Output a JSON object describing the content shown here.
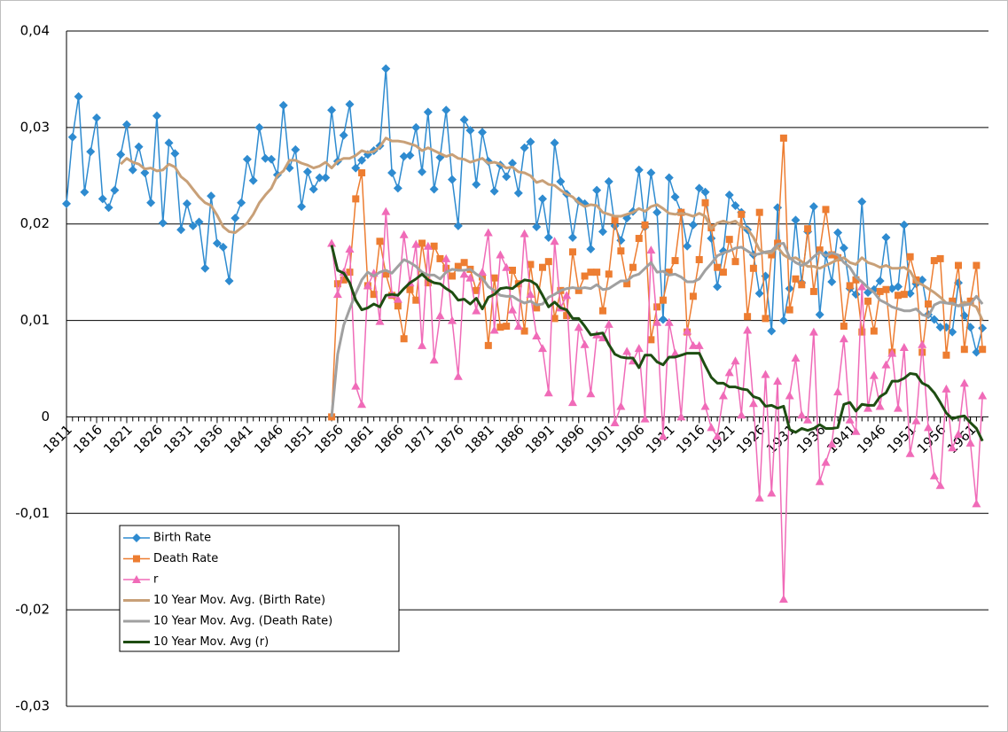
{
  "chart_data": {
    "type": "line",
    "x": [
      1811,
      1812,
      1813,
      1814,
      1815,
      1816,
      1817,
      1818,
      1819,
      1820,
      1821,
      1822,
      1823,
      1824,
      1825,
      1826,
      1827,
      1828,
      1829,
      1830,
      1831,
      1832,
      1833,
      1834,
      1835,
      1836,
      1837,
      1838,
      1839,
      1840,
      1841,
      1842,
      1843,
      1844,
      1845,
      1846,
      1847,
      1848,
      1849,
      1850,
      1851,
      1852,
      1853,
      1854,
      1855,
      1856,
      1857,
      1858,
      1859,
      1860,
      1861,
      1862,
      1863,
      1864,
      1865,
      1866,
      1867,
      1868,
      1869,
      1870,
      1871,
      1872,
      1873,
      1874,
      1875,
      1876,
      1877,
      1878,
      1879,
      1880,
      1881,
      1882,
      1883,
      1884,
      1885,
      1886,
      1887,
      1888,
      1889,
      1890,
      1891,
      1892,
      1893,
      1894,
      1895,
      1896,
      1897,
      1898,
      1899,
      1900,
      1901,
      1902,
      1903,
      1904,
      1905,
      1906,
      1907,
      1908,
      1909,
      1910,
      1911,
      1912,
      1913,
      1914,
      1915,
      1916,
      1917,
      1918,
      1919,
      1920,
      1921,
      1922,
      1923,
      1924,
      1925,
      1926,
      1927,
      1928,
      1929,
      1930,
      1931,
      1932,
      1933,
      1934,
      1935,
      1936,
      1937,
      1938,
      1939,
      1940,
      1941,
      1942,
      1943,
      1944,
      1945,
      1946,
      1947,
      1948,
      1949,
      1950,
      1951,
      1952,
      1953,
      1954,
      1955,
      1956,
      1957,
      1958,
      1959,
      1960,
      1961,
      1962,
      1963
    ],
    "xlim": [
      1811,
      1964
    ],
    "xticks": [
      1811,
      1816,
      1821,
      1826,
      1831,
      1836,
      1841,
      1846,
      1851,
      1856,
      1861,
      1866,
      1871,
      1876,
      1881,
      1886,
      1891,
      1896,
      1901,
      1906,
      1911,
      1916,
      1921,
      1926,
      1931,
      1936,
      1941,
      1946,
      1951,
      1956,
      1961
    ],
    "ylim": [
      -0.03,
      0.04
    ],
    "yticks": [
      {
        "value": -0.03,
        "label": "-0,03"
      },
      {
        "value": -0.02,
        "label": "-0,02"
      },
      {
        "value": -0.01,
        "label": "-0,01"
      },
      0,
      {
        "value": 0.01,
        "label": "0,01"
      },
      {
        "value": 0.02,
        "label": "0,02"
      },
      {
        "value": 0.03,
        "label": "0,03"
      },
      {
        "value": 0.04,
        "label": "0,04"
      }
    ],
    "grid": true,
    "legend": "lower left",
    "series": [
      {
        "name": "Birth Rate",
        "color": "#2e8bd0",
        "marker": "diamond",
        "width": 1.5,
        "values": [
          0.0221,
          0.029,
          0.0332,
          0.0233,
          0.0275,
          0.031,
          0.0226,
          0.0217,
          0.0235,
          0.0272,
          0.0303,
          0.0256,
          0.028,
          0.0253,
          0.0222,
          0.0312,
          0.0201,
          0.0284,
          0.0273,
          0.0194,
          0.0221,
          0.0198,
          0.0202,
          0.0154,
          0.0229,
          0.018,
          0.0176,
          0.0141,
          0.0206,
          0.0222,
          0.0267,
          0.0245,
          0.03,
          0.0268,
          0.0267,
          0.0251,
          0.0323,
          0.0258,
          0.0277,
          0.0218,
          0.0254,
          0.0236,
          0.0248,
          0.0248,
          0.0318,
          0.0265,
          0.0292,
          0.0324,
          0.0258,
          0.0266,
          0.0272,
          0.0276,
          0.0281,
          0.0361,
          0.0253,
          0.0237,
          0.027,
          0.0271,
          0.03,
          0.0254,
          0.0316,
          0.0236,
          0.0269,
          0.0318,
          0.0246,
          0.0198,
          0.0308,
          0.0297,
          0.0241,
          0.0295,
          0.0265,
          0.0234,
          0.0261,
          0.0249,
          0.0263,
          0.0232,
          0.0279,
          0.0285,
          0.0197,
          0.0226,
          0.0186,
          0.0284,
          0.0244,
          0.0231,
          0.0186,
          0.0224,
          0.0221,
          0.0174,
          0.0235,
          0.0192,
          0.0244,
          0.0198,
          0.0183,
          0.0206,
          0.0213,
          0.0256,
          0.0197,
          0.0253,
          0.0212,
          0.0101,
          0.0248,
          0.0228,
          0.0212,
          0.0177,
          0.0199,
          0.0237,
          0.0233,
          0.0185,
          0.0135,
          0.0172,
          0.023,
          0.0219,
          0.0212,
          0.0194,
          0.0168,
          0.0128,
          0.0146,
          0.0089,
          0.0217,
          0.01,
          0.0133,
          0.0204,
          0.0139,
          0.0192,
          0.0218,
          0.0106,
          0.0168,
          0.014,
          0.0191,
          0.0175,
          0.0133,
          0.0127,
          0.0223,
          0.0129,
          0.0132,
          0.0141,
          0.0186,
          0.0133,
          0.0135,
          0.0199,
          0.0128,
          0.0138,
          0.0142,
          0.0106,
          0.0101,
          0.0093,
          0.0093,
          0.0088,
          0.0139,
          0.0105,
          0.0093,
          0.0067,
          0.0092
        ]
      },
      {
        "name": "Death Rate",
        "color": "#ed7d31",
        "marker": "square",
        "width": 1.5,
        "values": [
          null,
          null,
          null,
          null,
          null,
          null,
          null,
          null,
          null,
          null,
          null,
          null,
          null,
          null,
          null,
          null,
          null,
          null,
          null,
          null,
          null,
          null,
          null,
          null,
          null,
          null,
          null,
          null,
          null,
          null,
          null,
          null,
          null,
          null,
          null,
          null,
          null,
          null,
          null,
          null,
          null,
          null,
          null,
          null,
          0,
          0.0138,
          0.0142,
          0.015,
          0.0226,
          0.0253,
          0.0136,
          0.0127,
          0.0182,
          0.0148,
          0.0126,
          0.0115,
          0.0081,
          0.0132,
          0.0121,
          0.018,
          0.0139,
          0.0177,
          0.0164,
          0.0154,
          0.0146,
          0.0156,
          0.016,
          0.0153,
          0.0131,
          0.0145,
          0.0074,
          0.0144,
          0.0093,
          0.0094,
          0.0152,
          0.0138,
          0.0089,
          0.0158,
          0.0113,
          0.0155,
          0.0161,
          0.0102,
          0.0131,
          0.0105,
          0.0171,
          0.0131,
          0.0146,
          0.015,
          0.015,
          0.011,
          0.0148,
          0.0204,
          0.0172,
          0.0138,
          0.0155,
          0.0185,
          0.0199,
          0.008,
          0.0114,
          0.0121,
          0.015,
          0.0162,
          0.0212,
          0.0088,
          0.0125,
          0.0163,
          0.0222,
          0.0196,
          0.0155,
          0.015,
          0.0184,
          0.0161,
          0.021,
          0.0104,
          0.0154,
          0.0212,
          0.0102,
          0.0168,
          0.018,
          0.0289,
          0.0111,
          0.0143,
          0.0137,
          0.0195,
          0.013,
          0.0173,
          0.0215,
          0.0168,
          0.0165,
          0.0094,
          0.0136,
          0.0142,
          0.0088,
          0.012,
          0.0089,
          0.013,
          0.0132,
          0.0067,
          0.0126,
          0.0127,
          0.0166,
          0.0142,
          0.0067,
          0.0117,
          0.0162,
          0.0164,
          0.0064,
          0.012,
          0.0157,
          0.007,
          0.012,
          0.0157,
          0.007
        ]
      },
      {
        "name": "r",
        "color": "#f06bb8",
        "marker": "triangle",
        "width": 1.5,
        "values": [
          null,
          null,
          null,
          null,
          null,
          null,
          null,
          null,
          null,
          null,
          null,
          null,
          null,
          null,
          null,
          null,
          null,
          null,
          null,
          null,
          null,
          null,
          null,
          null,
          null,
          null,
          null,
          null,
          null,
          null,
          null,
          null,
          null,
          null,
          null,
          null,
          null,
          null,
          null,
          null,
          null,
          null,
          null,
          null,
          0.018,
          0.0127,
          0.015,
          0.0174,
          0.0032,
          0.0013,
          0.0136,
          0.0149,
          0.0099,
          0.0213,
          0.0127,
          0.0122,
          0.0189,
          0.0139,
          0.0179,
          0.0074,
          0.0177,
          0.0059,
          0.0105,
          0.0164,
          0.01,
          0.0042,
          0.0148,
          0.0144,
          0.011,
          0.015,
          0.0191,
          0.009,
          0.0168,
          0.0155,
          0.0111,
          0.0094,
          0.019,
          0.0127,
          0.0084,
          0.0071,
          0.0025,
          0.0182,
          0.0113,
          0.0126,
          0.0015,
          0.0093,
          0.0075,
          0.0024,
          0.0085,
          0.0082,
          0.0096,
          -0.0006,
          0.0011,
          0.0068,
          0.0058,
          0.0071,
          -0.0002,
          0.0173,
          0.0098,
          -0.002,
          0.0098,
          0.0066,
          0,
          0.0089,
          0.0074,
          0.0074,
          0.0011,
          -0.0011,
          -0.002,
          0.0022,
          0.0046,
          0.0058,
          0.0002,
          0.009,
          0.0014,
          -0.0084,
          0.0044,
          -0.0079,
          0.0037,
          -0.0189,
          0.0022,
          0.0061,
          0.0002,
          -0.0003,
          0.0088,
          -0.0067,
          -0.0047,
          -0.0028,
          0.0026,
          0.0081,
          -0.0003,
          -0.0015,
          0.0135,
          0.0009,
          0.0043,
          0.0011,
          0.0054,
          0.0066,
          0.0009,
          0.0072,
          -0.0038,
          -0.0004,
          0.0075,
          -0.0011,
          -0.0061,
          -0.0071,
          0.0029,
          -0.0032,
          -0.0018,
          0.0035,
          -0.0027,
          -0.009,
          0.0022
        ]
      },
      {
        "name": "10 Year Mov. Avg. (Birth Rate)",
        "color": "#c8a078",
        "marker": "none",
        "width": 3,
        "values": [
          null,
          null,
          null,
          null,
          null,
          null,
          null,
          null,
          null,
          0.0262,
          0.0268,
          0.0264,
          0.0262,
          0.0257,
          0.0258,
          0.0255,
          0.0256,
          0.0262,
          0.0259,
          0.0249,
          0.0244,
          0.0236,
          0.0228,
          0.0222,
          0.0219,
          0.0209,
          0.0197,
          0.0192,
          0.0191,
          0.0196,
          0.0201,
          0.021,
          0.0222,
          0.023,
          0.0237,
          0.025,
          0.0255,
          0.0266,
          0.0266,
          0.0263,
          0.0261,
          0.0258,
          0.026,
          0.0264,
          0.0258,
          0.0265,
          0.0268,
          0.0268,
          0.0271,
          0.0276,
          0.0274,
          0.0275,
          0.028,
          0.0289,
          0.0286,
          0.0286,
          0.0285,
          0.0283,
          0.0281,
          0.0276,
          0.0279,
          0.0276,
          0.0273,
          0.027,
          0.0272,
          0.0268,
          0.0267,
          0.0264,
          0.0266,
          0.0268,
          0.0263,
          0.0264,
          0.0262,
          0.0258,
          0.0259,
          0.0254,
          0.0253,
          0.025,
          0.0243,
          0.0245,
          0.0241,
          0.024,
          0.0235,
          0.0231,
          0.0228,
          0.0222,
          0.0218,
          0.022,
          0.0219,
          0.0212,
          0.021,
          0.0208,
          0.0208,
          0.021,
          0.0212,
          0.0216,
          0.0213,
          0.0218,
          0.022,
          0.0216,
          0.0211,
          0.021,
          0.0211,
          0.021,
          0.0208,
          0.0211,
          0.0208,
          0.0195,
          0.0201,
          0.0203,
          0.0201,
          0.0203,
          0.0197,
          0.0195,
          0.0186,
          0.0173,
          0.017,
          0.017,
          0.0176,
          0.0168,
          0.0164,
          0.0165,
          0.0161,
          0.0156,
          0.0156,
          0.0154,
          0.0157,
          0.016,
          0.0163,
          0.0165,
          0.016,
          0.0158,
          0.0165,
          0.016,
          0.0158,
          0.0155,
          0.0157,
          0.0154,
          0.0154,
          0.0155,
          0.0151,
          0.014,
          0.0137,
          0.0133,
          0.0129,
          0.0124,
          0.0118,
          0.0117,
          0.0115,
          0.0119,
          0.0117,
          0.0114,
          0.01
        ]
      },
      {
        "name": "10 Year Mov. Avg. (Death Rate)",
        "color": "#a0a0a0",
        "marker": "none",
        "width": 3,
        "values": [
          null,
          null,
          null,
          null,
          null,
          null,
          null,
          null,
          null,
          null,
          null,
          null,
          null,
          null,
          null,
          null,
          null,
          null,
          null,
          null,
          null,
          null,
          null,
          null,
          null,
          null,
          null,
          null,
          null,
          null,
          null,
          null,
          null,
          null,
          null,
          null,
          null,
          null,
          null,
          null,
          null,
          null,
          null,
          null,
          0,
          0.0065,
          0.0095,
          0.0112,
          0.0128,
          0.0142,
          0.015,
          0.0146,
          0.015,
          0.0152,
          0.0149,
          0.0156,
          0.0163,
          0.016,
          0.0156,
          0.015,
          0.0147,
          0.0147,
          0.0143,
          0.015,
          0.0153,
          0.0152,
          0.0152,
          0.0153,
          0.0148,
          0.0144,
          0.0135,
          0.0131,
          0.0126,
          0.0125,
          0.0125,
          0.0121,
          0.0118,
          0.012,
          0.0116,
          0.0117,
          0.0124,
          0.0127,
          0.0131,
          0.0133,
          0.0134,
          0.0133,
          0.0134,
          0.0133,
          0.0137,
          0.0132,
          0.0133,
          0.0137,
          0.0141,
          0.0141,
          0.0146,
          0.0148,
          0.0154,
          0.016,
          0.015,
          0.0151,
          0.0147,
          0.0148,
          0.0145,
          0.014,
          0.014,
          0.0143,
          0.0152,
          0.0159,
          0.0167,
          0.017,
          0.0172,
          0.0175,
          0.0176,
          0.0172,
          0.0168,
          0.0169,
          0.0171,
          0.0172,
          0.0179,
          0.018,
          0.0165,
          0.016,
          0.0157,
          0.016,
          0.0166,
          0.0171,
          0.0167,
          0.017,
          0.0168,
          0.016,
          0.0155,
          0.0145,
          0.014,
          0.0134,
          0.0129,
          0.0121,
          0.0118,
          0.0114,
          0.0112,
          0.011,
          0.011,
          0.0112,
          0.0106,
          0.0104,
          0.0116,
          0.0119,
          0.0118,
          0.0118,
          0.0115,
          0.0116,
          0.0117,
          0.0125,
          0.0117
        ]
      },
      {
        "name": "10 Year Mov. Avg (r)",
        "color": "#1e4d12",
        "marker": "none",
        "width": 3,
        "values": [
          null,
          null,
          null,
          null,
          null,
          null,
          null,
          null,
          null,
          null,
          null,
          null,
          null,
          null,
          null,
          null,
          null,
          null,
          null,
          null,
          null,
          null,
          null,
          null,
          null,
          null,
          null,
          null,
          null,
          null,
          null,
          null,
          null,
          null,
          null,
          null,
          null,
          null,
          null,
          null,
          null,
          null,
          null,
          null,
          0.0178,
          0.0152,
          0.0149,
          0.0139,
          0.0121,
          0.0111,
          0.0113,
          0.0117,
          0.0114,
          0.0126,
          0.0127,
          0.0126,
          0.0133,
          0.0139,
          0.0143,
          0.0148,
          0.0142,
          0.0139,
          0.0138,
          0.0133,
          0.0129,
          0.0121,
          0.0122,
          0.0117,
          0.0123,
          0.0112,
          0.0124,
          0.0127,
          0.0133,
          0.0134,
          0.0133,
          0.0138,
          0.0142,
          0.0141,
          0.0137,
          0.0126,
          0.0114,
          0.0119,
          0.0113,
          0.0111,
          0.0102,
          0.0102,
          0.0094,
          0.0085,
          0.0086,
          0.0087,
          0.0075,
          0.0065,
          0.0062,
          0.0061,
          0.0061,
          0.0051,
          0.0064,
          0.0064,
          0.0057,
          0.0054,
          0.0062,
          0.0062,
          0.0064,
          0.0066,
          0.0066,
          0.0066,
          0.0053,
          0.0041,
          0.0035,
          0.0035,
          0.0031,
          0.0031,
          0.0029,
          0.0028,
          0.0021,
          0.0019,
          0.0011,
          0.0012,
          0.0009,
          0.0011,
          -0.0013,
          -0.0016,
          -0.0012,
          -0.0014,
          -0.0012,
          -0.0008,
          -0.0012,
          -0.0012,
          -0.0011,
          0.0013,
          0.0015,
          0.0006,
          0.0013,
          0.0012,
          0.0012,
          0.0021,
          0.0025,
          0.0037,
          0.0037,
          0.004,
          0.0045,
          0.0044,
          0.0035,
          0.0032,
          0.0025,
          0.0015,
          0.0004,
          -0.0002,
          0,
          0.0001,
          -0.0006,
          -0.0012,
          -0.0025
        ]
      }
    ]
  }
}
